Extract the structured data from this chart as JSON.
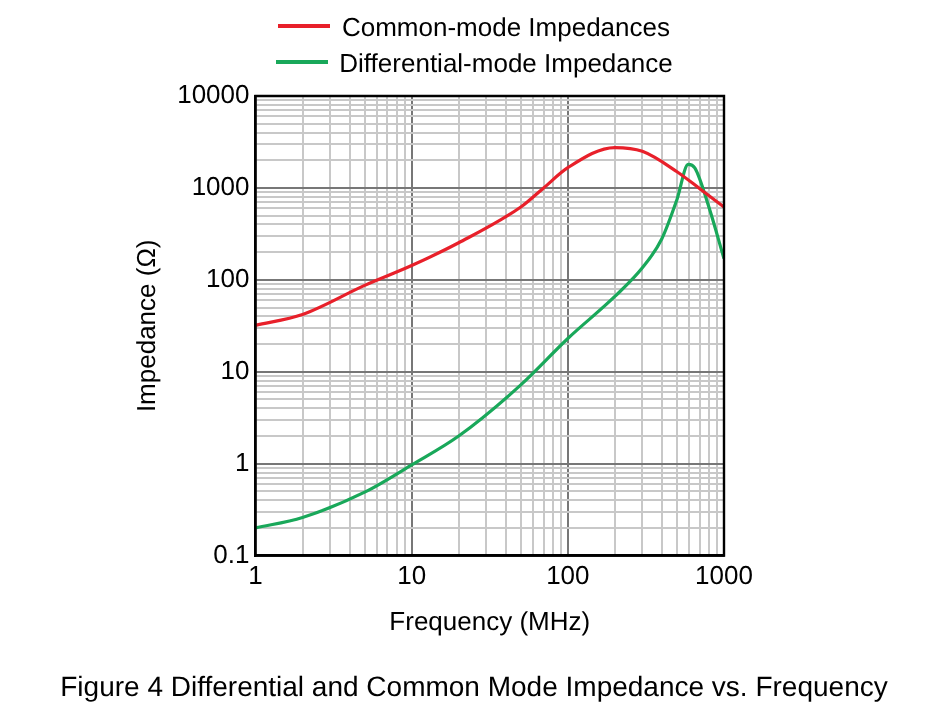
{
  "chart_data": {
    "type": "line",
    "xlabel": "Frequency (MHz)",
    "ylabel": "Impedance (Ω)",
    "log": "xy",
    "grid": true,
    "legend": "top",
    "marker": "none",
    "line_style": "solid",
    "annotations": [
      "Figure 4 Differential and Common Mode Impedance vs. Frequency"
    ],
    "xlim": [
      1,
      1000
    ],
    "ylim": [
      0.1,
      10000
    ],
    "xticks": [
      1,
      {
        "value": 2,
        "label": null
      },
      {
        "value": 3,
        "label": null
      },
      {
        "value": 4,
        "label": null
      },
      {
        "value": 5,
        "label": null
      },
      {
        "value": 6,
        "label": null
      },
      {
        "value": 7,
        "label": null
      },
      {
        "value": 8,
        "label": null
      },
      {
        "value": 9,
        "label": null
      },
      10,
      {
        "value": 20,
        "label": null
      },
      {
        "value": 30,
        "label": null
      },
      {
        "value": 40,
        "label": null
      },
      {
        "value": 50,
        "label": null
      },
      {
        "value": 60,
        "label": null
      },
      {
        "value": 70,
        "label": null
      },
      {
        "value": 80,
        "label": null
      },
      {
        "value": 90,
        "label": null
      },
      100,
      {
        "value": 200,
        "label": null
      },
      {
        "value": 300,
        "label": null
      },
      {
        "value": 400,
        "label": null
      },
      {
        "value": 500,
        "label": null
      },
      {
        "value": 600,
        "label": null
      },
      {
        "value": 700,
        "label": null
      },
      {
        "value": 800,
        "label": null
      },
      {
        "value": 900,
        "label": null
      },
      1000
    ],
    "yticks": [
      0.1,
      {
        "value": 0.2,
        "label": null
      },
      {
        "value": 0.3,
        "label": null
      },
      {
        "value": 0.4,
        "label": null
      },
      {
        "value": 0.5,
        "label": null
      },
      {
        "value": 0.6,
        "label": null
      },
      {
        "value": 0.7,
        "label": null
      },
      {
        "value": 0.8,
        "label": null
      },
      {
        "value": 0.9,
        "label": null
      },
      1,
      {
        "value": 2,
        "label": null
      },
      {
        "value": 3,
        "label": null
      },
      {
        "value": 4,
        "label": null
      },
      {
        "value": 5,
        "label": null
      },
      {
        "value": 6,
        "label": null
      },
      {
        "value": 7,
        "label": null
      },
      {
        "value": 8,
        "label": null
      },
      {
        "value": 9,
        "label": null
      },
      10,
      {
        "value": 20,
        "label": null
      },
      {
        "value": 30,
        "label": null
      },
      {
        "value": 40,
        "label": null
      },
      {
        "value": 50,
        "label": null
      },
      {
        "value": 60,
        "label": null
      },
      {
        "value": 70,
        "label": null
      },
      {
        "value": 80,
        "label": null
      },
      {
        "value": 90,
        "label": null
      },
      100,
      {
        "value": 200,
        "label": null
      },
      {
        "value": 300,
        "label": null
      },
      {
        "value": 400,
        "label": null
      },
      {
        "value": 500,
        "label": null
      },
      {
        "value": 600,
        "label": null
      },
      {
        "value": 700,
        "label": null
      },
      {
        "value": 800,
        "label": null
      },
      {
        "value": 900,
        "label": null
      },
      1000,
      {
        "value": 2000,
        "label": null
      },
      {
        "value": 3000,
        "label": null
      },
      {
        "value": 4000,
        "label": null
      },
      {
        "value": 5000,
        "label": null
      },
      {
        "value": 6000,
        "label": null
      },
      {
        "value": 7000,
        "label": null
      },
      {
        "value": 8000,
        "label": null
      },
      {
        "value": 9000,
        "label": null
      },
      10000
    ],
    "series": [
      {
        "name": "Common-mode Impedances",
        "color": "#e8202a",
        "x": [
          1,
          2,
          5,
          10,
          20,
          50,
          70,
          100,
          200,
          300,
          500,
          700,
          1000
        ],
        "values": [
          32,
          42,
          87,
          143,
          253,
          620,
          1000,
          1660,
          2750,
          2500,
          1500,
          980,
          620
        ]
      },
      {
        "name": "Differential-mode Impedance",
        "color": "#19a85a",
        "x": [
          1,
          2,
          5,
          10,
          20,
          50,
          100,
          200,
          300,
          400,
          500,
          590,
          650,
          800,
          1000
        ],
        "values": [
          0.2,
          0.26,
          0.49,
          0.97,
          2,
          7.2,
          23,
          66,
          135,
          280,
          750,
          1800,
          1650,
          620,
          170
        ]
      }
    ]
  }
}
